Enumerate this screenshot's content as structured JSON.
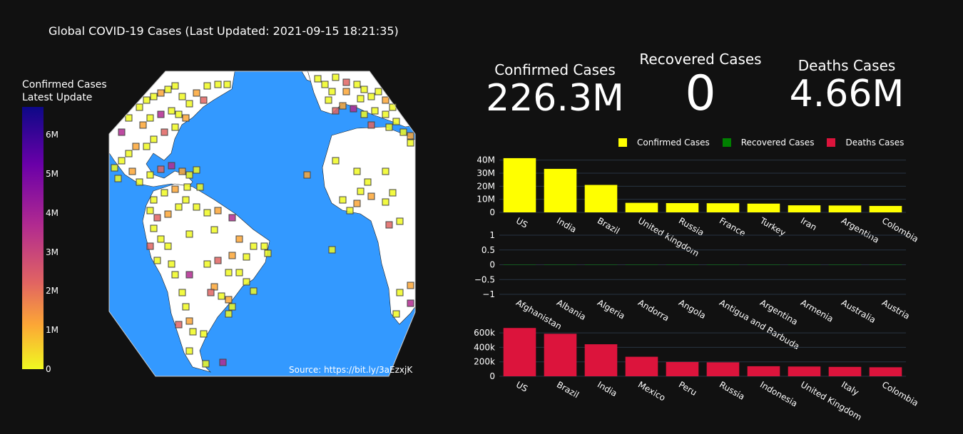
{
  "title": "Global COVID-19 Cases (Last Updated: 2021-09-15 18:21:35)",
  "colorbar": {
    "title_line1": "Confirmed Cases",
    "title_line2": "Latest Update",
    "ticks": [
      "0",
      "1M",
      "2M",
      "3M",
      "4M",
      "5M",
      "6M"
    ]
  },
  "source": "Source: https://bit.ly/3aEzxjK",
  "indicators": [
    {
      "label": "Confirmed Cases",
      "value": "226.3M"
    },
    {
      "label": "Recovered Cases",
      "value": "0"
    },
    {
      "label": "Deaths Cases",
      "value": "4.66M"
    }
  ],
  "legend": [
    {
      "name": "Confirmed Cases",
      "color": "#ffff00"
    },
    {
      "name": "Recovered Cases",
      "color": "#008000"
    },
    {
      "name": "Deaths Cases",
      "color": "#dc143c"
    }
  ],
  "colors": {
    "background": "#111111",
    "ocean": "#3399ff",
    "land": "#ffffff",
    "confirmed": "#ffff00",
    "recovered": "#008000",
    "deaths": "#dc143c",
    "grid": "#283442"
  },
  "chart_data": [
    {
      "type": "bar",
      "series_name": "Confirmed Cases",
      "categories": [
        "US",
        "India",
        "Brazil",
        "United Kingdom",
        "Russia",
        "France",
        "Turkey",
        "Iran",
        "Argentina",
        "Colombia"
      ],
      "values": [
        41500000,
        33300000,
        21000000,
        7300000,
        7100000,
        7000000,
        6700000,
        5400000,
        5250000,
        4930000
      ],
      "yticks": [
        "0",
        "10M",
        "20M",
        "30M",
        "40M"
      ],
      "ylim": [
        0,
        42000000
      ]
    },
    {
      "type": "bar",
      "series_name": "Recovered Cases",
      "categories": [
        "Afghanistan",
        "Albania",
        "Algeria",
        "Andorra",
        "Angola",
        "Antigua and Barbuda",
        "Argentina",
        "Armenia",
        "Australia",
        "Austria"
      ],
      "values": [
        0,
        0,
        0,
        0,
        0,
        0,
        0,
        0,
        0,
        0
      ],
      "yticks": [
        "−1",
        "−0.5",
        "0",
        "0.5",
        "1"
      ],
      "ylim": [
        -1,
        1
      ]
    },
    {
      "type": "bar",
      "series_name": "Deaths Cases",
      "categories": [
        "US",
        "Brazil",
        "India",
        "Mexico",
        "Peru",
        "Russia",
        "Indonesia",
        "United Kingdom",
        "Italy",
        "Colombia"
      ],
      "values": [
        668000,
        588000,
        443000,
        270000,
        198000,
        193000,
        139000,
        135000,
        130000,
        125000
      ],
      "yticks": [
        "0",
        "200k",
        "400k",
        "600k"
      ],
      "ylim": [
        0,
        700000
      ]
    },
    {
      "type": "scatter",
      "series_name": "Confirmed Cases",
      "coloraxis": {
        "range": [
          0,
          6800000
        ],
        "ticks": [
          "0",
          "1M",
          "2M",
          "3M",
          "4M",
          "5M",
          "6M"
        ]
      }
    }
  ]
}
